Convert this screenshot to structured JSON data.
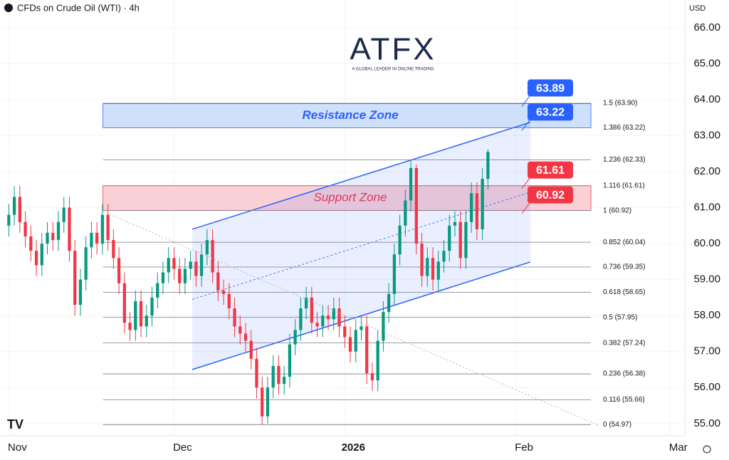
{
  "chart_data": {
    "type": "candlestick",
    "title": "CFDs on Crude Oil (WTI) · 4h",
    "currency": "USD",
    "logo": {
      "name": "ATFX",
      "tagline": "A GLOBAL LEADER IN ONLINE TRADING"
    },
    "x": [
      0,
      1,
      2,
      3,
      4,
      5,
      6,
      7,
      8,
      9,
      10,
      11,
      12,
      13,
      14,
      15,
      16,
      17,
      18,
      19,
      20,
      21,
      22,
      23,
      24,
      25,
      26,
      27,
      28,
      29,
      30,
      31,
      32,
      33,
      34,
      35,
      36,
      37,
      38,
      39,
      40,
      41,
      42,
      43,
      44,
      45,
      46,
      47,
      48,
      49,
      50,
      51,
      52,
      53,
      54,
      55,
      56,
      57,
      58,
      59,
      60,
      61,
      62,
      63,
      64,
      65,
      66,
      67,
      68,
      69,
      70,
      71,
      72,
      73,
      74,
      75,
      76,
      77,
      78,
      79,
      80,
      81,
      82,
      83,
      84,
      85,
      86,
      87
    ],
    "open": [
      60.5,
      60.8,
      61.3,
      60.6,
      60.2,
      59.8,
      59.4,
      60.0,
      60.3,
      60.1,
      60.6,
      61.0,
      59.8,
      58.3,
      59.0,
      59.9,
      60.3,
      60.0,
      60.8,
      60.1,
      59.6,
      58.9,
      57.8,
      57.6,
      58.4,
      57.7,
      58.0,
      58.5,
      58.9,
      59.2,
      59.6,
      59.3,
      58.9,
      59.3,
      59.5,
      59.1,
      59.7,
      60.1,
      59.2,
      58.7,
      58.6,
      58.2,
      57.7,
      57.5,
      57.3,
      56.8,
      56.0,
      55.2,
      56.0,
      56.6,
      56.1,
      56.3,
      57.2,
      57.6,
      58.2,
      58.5,
      57.8,
      57.7,
      58.0,
      57.9,
      58.2,
      57.7,
      57.4,
      57.0,
      57.6,
      57.7,
      56.4,
      56.2,
      57.3,
      58.1,
      58.6,
      59.7,
      60.5,
      61.2,
      62.1,
      60.0,
      59.1,
      59.6,
      59.0,
      59.5,
      59.8,
      60.5,
      60.6,
      59.6,
      60.6,
      61.4,
      60.4,
      61.8
    ],
    "high": [
      61.1,
      61.6,
      61.6,
      60.9,
      60.5,
      60.1,
      60.3,
      60.6,
      60.6,
      60.9,
      61.3,
      61.3,
      60.1,
      59.3,
      60.2,
      60.6,
      60.6,
      61.1,
      61.1,
      60.4,
      59.9,
      59.2,
      58.1,
      58.7,
      58.7,
      58.3,
      58.8,
      59.2,
      59.5,
      59.9,
      59.9,
      59.6,
      59.6,
      59.8,
      59.8,
      60.0,
      60.4,
      60.4,
      59.5,
      59.0,
      58.9,
      58.5,
      58.0,
      57.8,
      57.6,
      57.1,
      56.3,
      56.3,
      56.9,
      56.9,
      56.6,
      57.5,
      57.9,
      58.5,
      58.8,
      58.8,
      58.1,
      58.3,
      58.3,
      58.5,
      58.5,
      58.0,
      57.7,
      57.9,
      58.0,
      58.0,
      56.7,
      57.6,
      58.4,
      58.9,
      60.0,
      60.8,
      61.5,
      62.33,
      62.2,
      60.3,
      59.9,
      59.9,
      59.8,
      60.1,
      60.8,
      60.9,
      60.9,
      60.9,
      61.7,
      61.7,
      62.1,
      62.62
    ],
    "low": [
      60.2,
      60.5,
      60.3,
      59.9,
      59.5,
      59.1,
      59.1,
      59.7,
      59.8,
      59.8,
      60.3,
      59.5,
      58.0,
      58.0,
      58.7,
      59.6,
      59.7,
      59.7,
      59.8,
      59.3,
      58.6,
      57.5,
      57.3,
      57.3,
      57.4,
      57.4,
      57.7,
      58.2,
      58.6,
      58.9,
      59.0,
      58.6,
      58.6,
      59.0,
      58.8,
      58.8,
      59.4,
      58.9,
      58.4,
      58.3,
      57.9,
      57.4,
      57.2,
      57.0,
      56.5,
      55.7,
      54.97,
      55.0,
      55.7,
      55.8,
      55.8,
      56.0,
      56.9,
      57.3,
      57.9,
      57.5,
      57.4,
      57.4,
      57.6,
      57.6,
      57.4,
      57.1,
      56.7,
      56.7,
      57.3,
      56.1,
      55.9,
      55.9,
      57.0,
      57.8,
      58.3,
      59.4,
      60.2,
      60.9,
      59.7,
      58.8,
      58.8,
      58.7,
      58.7,
      59.2,
      59.5,
      60.2,
      59.3,
      59.3,
      60.3,
      60.1,
      60.1,
      61.5
    ],
    "close": [
      60.8,
      61.3,
      60.6,
      60.2,
      59.8,
      59.4,
      60.0,
      60.3,
      60.1,
      60.6,
      61.0,
      59.8,
      58.3,
      59.0,
      59.9,
      60.3,
      60.0,
      60.8,
      60.1,
      59.6,
      58.9,
      57.8,
      57.6,
      58.4,
      57.7,
      58.0,
      58.5,
      58.9,
      59.2,
      59.6,
      59.3,
      58.9,
      59.3,
      59.5,
      59.1,
      59.7,
      60.1,
      59.2,
      58.7,
      58.6,
      58.2,
      57.7,
      57.5,
      57.3,
      56.8,
      56.0,
      55.2,
      56.0,
      56.6,
      56.1,
      56.3,
      57.2,
      57.6,
      58.2,
      58.5,
      57.8,
      57.7,
      58.0,
      57.9,
      58.2,
      57.7,
      57.4,
      57.0,
      57.6,
      57.7,
      56.4,
      56.2,
      57.3,
      58.1,
      58.6,
      59.7,
      60.5,
      61.2,
      62.1,
      60.0,
      59.1,
      59.6,
      59.0,
      59.5,
      59.8,
      60.5,
      60.6,
      59.6,
      60.6,
      61.4,
      60.4,
      61.8,
      62.55
    ],
    "up_color": "#089981",
    "down_color": "#f23645",
    "xlim": [
      -1.6,
      122.5
    ],
    "xticks": [
      {
        "value": 0,
        "label": "Nov"
      },
      {
        "value": 30,
        "label": "Dec"
      },
      {
        "value": 61,
        "label": "2026"
      },
      {
        "value": 92,
        "label": "Feb"
      },
      {
        "value": 120,
        "label": "Mar"
      }
    ],
    "ylim": [
      54.66,
      66.77
    ],
    "yticks": [
      {
        "value": 55,
        "label": "55.00"
      },
      {
        "value": 56,
        "label": "56.00"
      },
      {
        "value": 57,
        "label": "57.00"
      },
      {
        "value": 58,
        "label": "58.00"
      },
      {
        "value": 59,
        "label": "59.00"
      },
      {
        "value": 60,
        "label": "60.00"
      },
      {
        "value": 61,
        "label": "61.00"
      },
      {
        "value": 62,
        "label": "62.00"
      },
      {
        "value": 63,
        "label": "63.00"
      },
      {
        "value": 64,
        "label": "64.00"
      },
      {
        "value": 65,
        "label": "65.00"
      },
      {
        "value": 66,
        "label": "66.00"
      }
    ],
    "fib_x": [
      17.1,
      105.7
    ],
    "fib_levels": [
      {
        "value": 63.9,
        "label": "1.5 (63.90)"
      },
      {
        "value": 63.22,
        "label": "1.386 (63.22)"
      },
      {
        "value": 62.33,
        "label": "1.236 (62.33)"
      },
      {
        "value": 61.61,
        "label": "1.116 (61.61)"
      },
      {
        "value": 60.92,
        "label": "1 (60.92)"
      },
      {
        "value": 60.04,
        "label": "0.852 (60.04)"
      },
      {
        "value": 59.35,
        "label": "0.736 (59.35)"
      },
      {
        "value": 58.65,
        "label": "0.618 (58.65)"
      },
      {
        "value": 57.95,
        "label": "0.5 (57.95)"
      },
      {
        "value": 57.24,
        "label": "0.382 (57.24)"
      },
      {
        "value": 56.38,
        "label": "0.236 (56.38)"
      },
      {
        "value": 55.66,
        "label": "0.116 (55.66)"
      },
      {
        "value": 54.97,
        "label": "0 (54.97)"
      }
    ],
    "zones": [
      {
        "name": "Resistance Zone",
        "low": 63.22,
        "high": 63.89,
        "color": "#2962ff",
        "fill": "#cfe0fb"
      },
      {
        "name": "Support Zone",
        "low": 60.92,
        "high": 61.61,
        "color": "#f23645",
        "fill": "#f9d0d6"
      }
    ],
    "channel": {
      "x": [
        33.3,
        94.7
      ],
      "upper": [
        60.4,
        63.37
      ],
      "lower": [
        56.5,
        59.49
      ],
      "color": "#2962ff"
    }
  }
}
